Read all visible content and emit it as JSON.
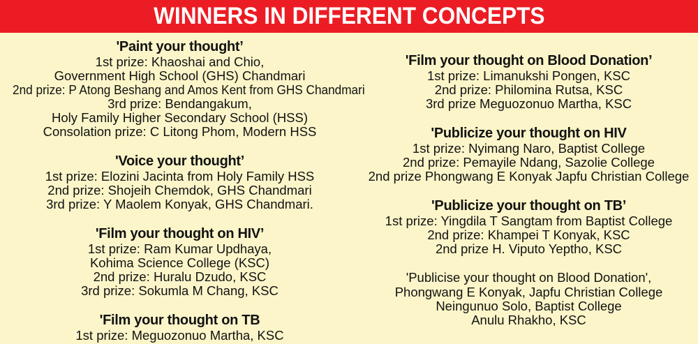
{
  "header": {
    "title": "WINNERS IN DIFFERENT CONCEPTS"
  },
  "colors": {
    "header_bg": "#EC1C24",
    "header_text": "#FFFFFF",
    "page_bg": "#FBF5C9",
    "body_text": "#121212"
  },
  "columns": {
    "left": {
      "sections": [
        {
          "title": "'Paint your thought’",
          "lines": [
            "1st prize:  Khaoshai and Chio,",
            "Government High School (GHS) Chandmari",
            "2nd prize: P Atong Beshang and Amos Kent from GHS Chandmari",
            "3rd prize: Bendangakum,",
            "Holy Family Higher Secondary School (HSS)",
            "Consolation prize: C Litong Phom, Modern HSS"
          ]
        },
        {
          "title": "'Voice your thought’",
          "lines": [
            "1st prize: Elozini Jacinta from Holy Family HSS",
            "2nd prize: Shojeih Chemdok, GHS Chandmari",
            "3rd prize: Y Maolem Konyak, GHS Chandmari."
          ]
        },
        {
          "title": "'Film your thought on HIV’",
          "lines": [
            "1st prize: Ram Kumar Updhaya,",
            "Kohima Science College (KSC)",
            "2nd prize: Huralu Dzudo, KSC",
            "3rd prize: Sokumla M Chang, KSC"
          ]
        },
        {
          "title": "'Film your thought on TB",
          "lines": [
            "1st prize: Meguozonuo Martha, KSC"
          ]
        }
      ]
    },
    "right": {
      "sections": [
        {
          "title": "'Film your thought on Blood Donation’",
          "lines": [
            "1st prize:  Limanukshi Pongen, KSC",
            "2nd prize: Philomina Rutsa, KSC",
            "3rd prize Meguozonuo Martha, KSC"
          ]
        },
        {
          "title": "'Publicize your thought on HIV",
          "lines": [
            "1st prize:  Nyimang Naro, Baptist College",
            "2nd prize: Pemayile Ndang, Sazolie College",
            "2nd prize Phongwang E Konyak Japfu Christian College"
          ]
        },
        {
          "title": "'Publicize your thought on TB’",
          "lines": [
            "1st prize:  Yingdila T Sangtam from Baptist College",
            "2nd prize: Khampei T Konyak, KSC",
            "2nd prize H. Viputo Yeptho, KSC"
          ]
        },
        {
          "title": "'Publicise your thought on Blood Donation',",
          "lines": [
            "Phongwang E Konyak, Japfu Christian College",
            "Neingunuo Solo, Baptist College",
            "Anulu Rhakho, KSC"
          ]
        }
      ]
    }
  }
}
